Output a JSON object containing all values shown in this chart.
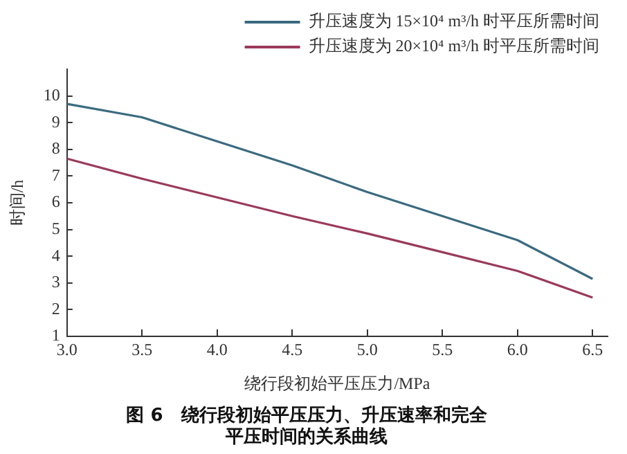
{
  "chart_data": {
    "type": "line",
    "title": "图 6　绕行段初始平压压力、升压速率和完全平压时间的关系曲线",
    "xlabel": "绕行段初始平压压力/MPa",
    "ylabel": "时间/h",
    "x": [
      3.0,
      3.5,
      4.0,
      4.5,
      5.0,
      5.5,
      6.0,
      6.5
    ],
    "series": [
      {
        "name": "升压速度为 15×10⁴ m³/h 时平压所需时间",
        "color": "#3a6a80",
        "values": [
          9.7,
          9.2,
          8.3,
          7.4,
          6.4,
          5.5,
          4.6,
          3.15
        ]
      },
      {
        "name": "升压速度为 20×10⁴ m³/h 时平压所需时间",
        "color": "#9a3a5a",
        "values": [
          7.65,
          6.9,
          6.2,
          5.5,
          4.85,
          4.15,
          3.45,
          2.45
        ]
      }
    ],
    "xlim": [
      3.0,
      6.6
    ],
    "xticks": [
      {
        "value": 3,
        "label": "3.0"
      },
      3.5,
      {
        "value": 4,
        "label": "4.0"
      },
      4.5,
      {
        "value": 5,
        "label": "5.0"
      },
      5.5,
      {
        "value": 6,
        "label": "6.0"
      },
      6.5
    ],
    "ylim": [
      1,
      11
    ],
    "yticks": [
      1,
      2,
      3,
      4,
      5,
      6,
      7,
      8,
      9,
      10
    ],
    "grid": false,
    "legend": "top right",
    "marker": "none",
    "line_style": "solid"
  }
}
